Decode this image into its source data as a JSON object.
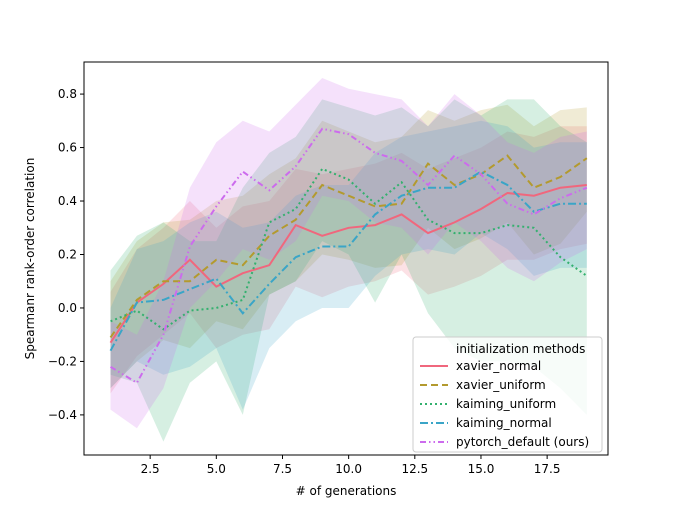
{
  "chart_data": {
    "type": "line",
    "title": "",
    "xlabel": "# of generations",
    "ylabel": "Spearmanr rank-order correlation",
    "xlim": [
      0.0,
      19.8
    ],
    "ylim": [
      -0.55,
      0.92
    ],
    "xticks": [
      2.5,
      5.0,
      7.5,
      10.0,
      12.5,
      15.0,
      17.5
    ],
    "xtick_labels": [
      "2.5",
      "5.0",
      "7.5",
      "10.0",
      "12.5",
      "15.0",
      "17.5"
    ],
    "yticks": [
      -0.4,
      -0.2,
      0.0,
      0.2,
      0.4,
      0.6,
      0.8
    ],
    "ytick_labels": [
      "−0.4",
      "−0.2",
      "0.0",
      "0.2",
      "0.4",
      "0.6",
      "0.8"
    ],
    "grid": false,
    "legend_title": "initialization methods",
    "legend_position": "lower right",
    "x": [
      1,
      2,
      3,
      4,
      5,
      6,
      7,
      8,
      9,
      10,
      11,
      12,
      13,
      14,
      15,
      16,
      17,
      18,
      19
    ],
    "series": [
      {
        "name": "xavier_normal",
        "color": "#f0677d",
        "dash": "solid",
        "values": [
          -0.13,
          0.02,
          0.09,
          0.18,
          0.08,
          0.13,
          0.16,
          0.31,
          0.27,
          0.3,
          0.31,
          0.35,
          0.28,
          0.32,
          0.37,
          0.43,
          0.42,
          0.45,
          0.46
        ],
        "lower": [
          -0.32,
          -0.18,
          -0.1,
          -0.02,
          -0.15,
          -0.1,
          -0.08,
          0.08,
          0.04,
          0.08,
          0.1,
          0.14,
          0.05,
          0.08,
          0.12,
          0.18,
          0.18,
          0.22,
          0.24
        ],
        "upper": [
          0.06,
          0.22,
          0.3,
          0.4,
          0.3,
          0.38,
          0.4,
          0.52,
          0.5,
          0.52,
          0.54,
          0.58,
          0.52,
          0.56,
          0.6,
          0.66,
          0.64,
          0.68,
          0.68
        ]
      },
      {
        "name": "xavier_uniform",
        "color": "#b39a2e",
        "dash": "dashed",
        "values": [
          -0.11,
          0.03,
          0.1,
          0.1,
          0.18,
          0.16,
          0.27,
          0.33,
          0.46,
          0.42,
          0.38,
          0.39,
          0.54,
          0.46,
          0.5,
          0.57,
          0.45,
          0.49,
          0.56
        ],
        "lower": [
          -0.3,
          -0.2,
          -0.12,
          -0.15,
          -0.05,
          -0.08,
          0.05,
          0.1,
          0.2,
          0.18,
          0.15,
          0.16,
          0.3,
          0.22,
          0.26,
          0.32,
          0.2,
          0.24,
          0.36
        ],
        "upper": [
          0.1,
          0.25,
          0.32,
          0.33,
          0.4,
          0.42,
          0.5,
          0.56,
          0.7,
          0.66,
          0.62,
          0.64,
          0.74,
          0.7,
          0.74,
          0.76,
          0.68,
          0.74,
          0.75
        ]
      },
      {
        "name": "kaiming_uniform",
        "color": "#33b06e",
        "dash": "dotted",
        "values": [
          -0.05,
          -0.01,
          -0.08,
          -0.01,
          0.0,
          0.03,
          0.32,
          0.37,
          0.52,
          0.48,
          0.39,
          0.47,
          0.33,
          0.28,
          0.28,
          0.31,
          0.3,
          0.19,
          0.12
        ],
        "lower": [
          -0.25,
          -0.28,
          -0.5,
          -0.28,
          -0.2,
          -0.4,
          0.05,
          0.1,
          0.25,
          0.2,
          0.02,
          0.2,
          -0.02,
          -0.15,
          -0.2,
          -0.2,
          -0.22,
          -0.3,
          -0.4
        ],
        "upper": [
          0.14,
          0.27,
          0.32,
          0.25,
          0.25,
          0.45,
          0.58,
          0.64,
          0.78,
          0.75,
          0.72,
          0.75,
          0.68,
          0.78,
          0.72,
          0.78,
          0.78,
          0.68,
          0.62
        ]
      },
      {
        "name": "kaiming_normal",
        "color": "#3aa5c7",
        "dash": "dashdot",
        "values": [
          -0.16,
          0.02,
          0.03,
          0.07,
          0.11,
          -0.02,
          0.09,
          0.19,
          0.23,
          0.23,
          0.35,
          0.42,
          0.45,
          0.45,
          0.51,
          0.46,
          0.36,
          0.39,
          0.39
        ],
        "lower": [
          -0.3,
          -0.2,
          -0.25,
          -0.22,
          -0.15,
          -0.38,
          -0.15,
          -0.05,
          0.0,
          0.0,
          0.12,
          0.2,
          0.22,
          0.2,
          0.28,
          0.22,
          0.12,
          0.15,
          0.15
        ],
        "upper": [
          0.0,
          0.22,
          0.25,
          0.32,
          0.36,
          0.3,
          0.32,
          0.42,
          0.46,
          0.46,
          0.58,
          0.64,
          0.66,
          0.68,
          0.7,
          0.68,
          0.6,
          0.62,
          0.62
        ]
      },
      {
        "name": "pytorch_default (ours)",
        "color": "#cc6bed",
        "dash": "dashdotted",
        "values": [
          -0.22,
          -0.28,
          -0.1,
          0.23,
          0.38,
          0.51,
          0.44,
          0.53,
          0.67,
          0.65,
          0.58,
          0.55,
          0.46,
          0.57,
          0.5,
          0.39,
          0.35,
          0.41,
          0.45
        ],
        "lower": [
          -0.38,
          -0.45,
          -0.3,
          0.0,
          0.1,
          0.22,
          0.18,
          0.25,
          0.42,
          0.4,
          0.32,
          0.3,
          0.2,
          0.32,
          0.25,
          0.15,
          0.1,
          0.17,
          0.22
        ],
        "upper": [
          -0.05,
          -0.1,
          0.1,
          0.45,
          0.62,
          0.7,
          0.66,
          0.76,
          0.86,
          0.82,
          0.8,
          0.78,
          0.68,
          0.8,
          0.72,
          0.62,
          0.58,
          0.64,
          0.66
        ]
      }
    ]
  }
}
